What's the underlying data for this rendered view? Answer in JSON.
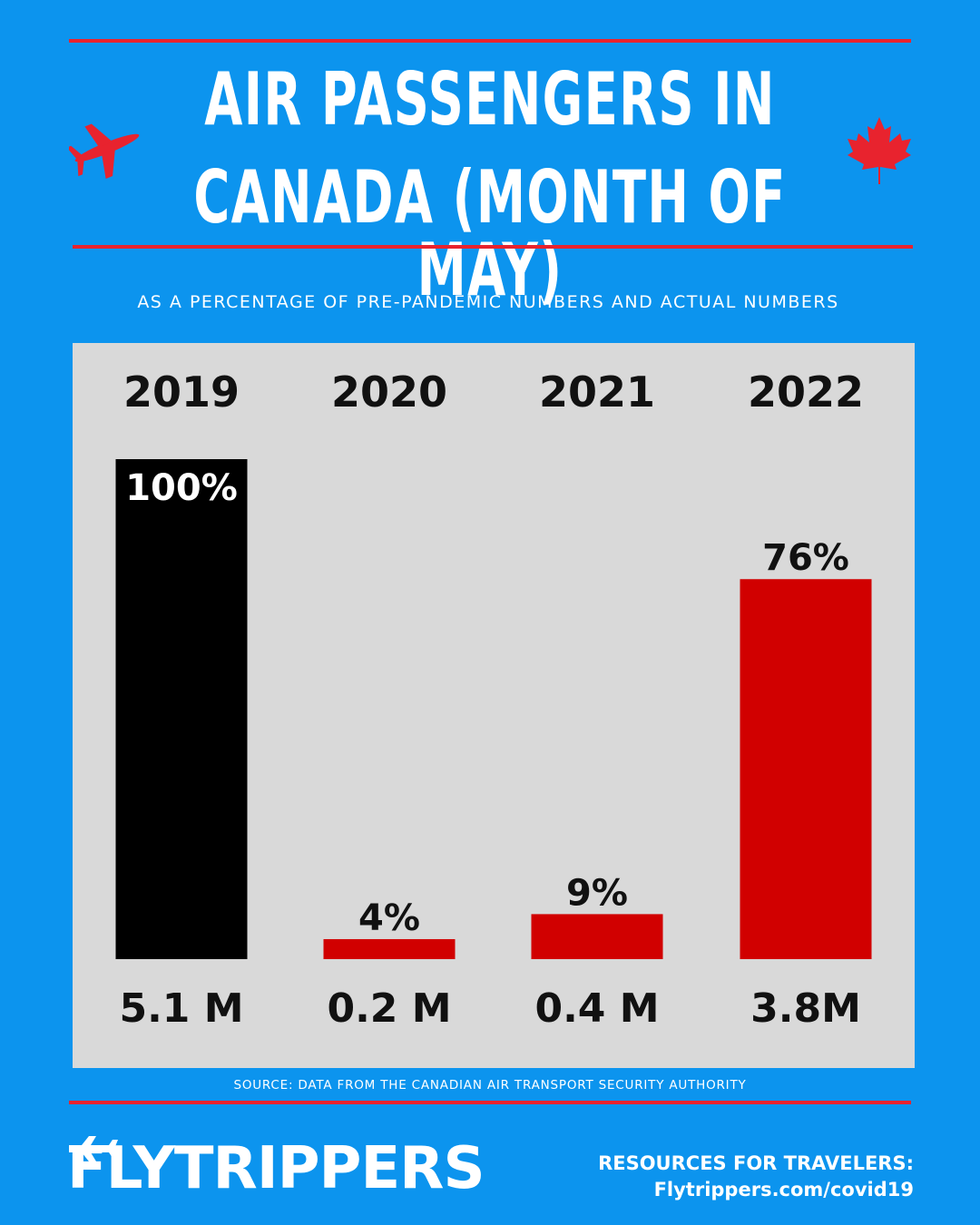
{
  "header": {
    "title_line_1": "AIR PASSENGERS IN",
    "title_line_2": "CANADA (MONTH OF MAY)",
    "subtitle": "AS A PERCENTAGE OF PRE-PANDEMIC NUMBERS AND ACTUAL NUMBERS"
  },
  "icons": {
    "left": "airplane-icon",
    "right": "maple-leaf-icon"
  },
  "colors": {
    "background": "#0c94ee",
    "accent_red": "#d10000",
    "rule_red": "#e8232e",
    "baseline_bar": "#000000",
    "panel": "#d9d9d9"
  },
  "chart_data": {
    "type": "bar",
    "title": "",
    "categories": [
      "2019",
      "2020",
      "2021",
      "2022"
    ],
    "values": [
      100,
      4,
      9,
      76
    ],
    "value_labels": [
      "100%",
      "4%",
      "9%",
      "76%"
    ],
    "actual_labels": [
      "5.1 M",
      "0.2 M",
      "0.4 M",
      "3.8M"
    ],
    "bar_colors": [
      "#000000",
      "#d10000",
      "#d10000",
      "#d10000"
    ],
    "ylim": [
      0,
      100
    ],
    "grid": false,
    "legend": "none"
  },
  "footer": {
    "source": "SOURCE: DATA FROM THE CANADIAN AIR TRANSPORT SECURITY AUTHORITY",
    "brand": "FLYTRIPPERS",
    "resources_label": "RESOURCES FOR TRAVELERS:",
    "resources_link": "Flytrippers.com/covid19"
  }
}
